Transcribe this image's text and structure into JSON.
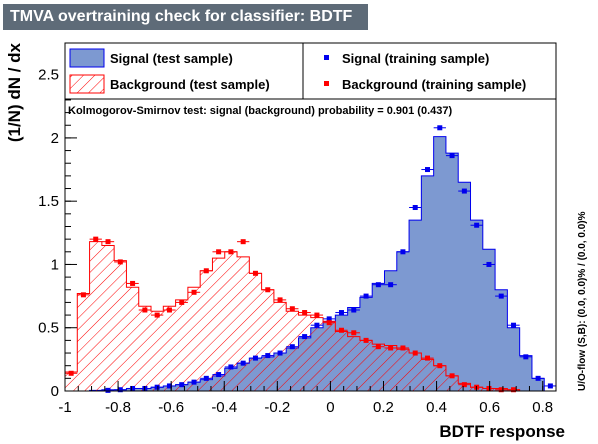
{
  "chart_data": {
    "type": "histogram",
    "title": "TMVA overtraining check for classifier: BDTF",
    "xlabel": "BDTF response",
    "ylabel": "(1/N) dN / dx",
    "side_label": "U/O-flow (S,B): (0.0, 0.0)% / (0.0, 0.0)%",
    "ks_text": "Kolmogorov-Smirnov test: signal (background) probability = 0.901 (0.437)",
    "xlim": [
      -1.0,
      0.85
    ],
    "ylim": [
      0,
      2.75
    ],
    "x_ticks": [
      "-1",
      "-0.8",
      "-0.6",
      "-0.4",
      "-0.2",
      "0",
      "0.2",
      "0.4",
      "0.6",
      "0.8"
    ],
    "x_tick_values": [
      -1,
      -0.8,
      -0.6,
      -0.4,
      -0.2,
      0,
      0.2,
      0.4,
      0.6,
      0.8
    ],
    "y_ticks": [
      "0",
      "0.5",
      "1",
      "1.5",
      "2",
      "2.5"
    ],
    "y_tick_values": [
      0,
      0.5,
      1,
      1.5,
      2,
      2.5
    ],
    "bin_edges_start": -1.0,
    "bin_width": 0.0463,
    "colors": {
      "signal_fill": "#7d99d1",
      "signal_line": "#0000ee",
      "background_line": "#ff0000"
    },
    "legend": {
      "signal_test": "Signal (test sample)",
      "background_test": "Background (test sample)",
      "signal_training": "Signal (training sample)",
      "background_training": "Background (training sample)"
    },
    "series": [
      {
        "name": "Signal (test sample)",
        "style": "filled-histogram",
        "values": [
          0.0,
          0.0,
          0.005,
          0.01,
          0.01,
          0.02,
          0.02,
          0.03,
          0.04,
          0.05,
          0.07,
          0.09,
          0.12,
          0.18,
          0.22,
          0.26,
          0.27,
          0.3,
          0.34,
          0.42,
          0.5,
          0.55,
          0.6,
          0.66,
          0.74,
          0.85,
          0.95,
          1.1,
          1.35,
          1.7,
          2.01,
          1.88,
          1.65,
          1.35,
          1.12,
          0.8,
          0.5,
          0.28,
          0.1,
          0.0
        ]
      },
      {
        "name": "Background (test sample)",
        "style": "hatched-histogram",
        "values": [
          0.15,
          0.77,
          1.18,
          1.15,
          1.03,
          0.82,
          0.67,
          0.63,
          0.67,
          0.72,
          0.82,
          0.95,
          1.05,
          1.1,
          1.06,
          0.93,
          0.8,
          0.7,
          0.63,
          0.6,
          0.58,
          0.55,
          0.47,
          0.43,
          0.4,
          0.37,
          0.36,
          0.33,
          0.3,
          0.25,
          0.2,
          0.12,
          0.06,
          0.03,
          0.02,
          0.02,
          0.01,
          0.0,
          0.0,
          0.0
        ]
      },
      {
        "name": "Signal (training sample)",
        "style": "points",
        "values": [
          0.0,
          0.0,
          0.0,
          0.005,
          0.01,
          0.02,
          0.02,
          0.03,
          0.04,
          0.05,
          0.07,
          0.1,
          0.13,
          0.19,
          0.22,
          0.26,
          0.28,
          0.3,
          0.35,
          0.43,
          0.52,
          0.57,
          0.62,
          0.64,
          0.75,
          0.84,
          0.84,
          1.1,
          1.45,
          1.75,
          2.08,
          1.86,
          1.58,
          1.31,
          1.0,
          0.75,
          0.52,
          0.27,
          0.1,
          0.04
        ]
      },
      {
        "name": "Background (training sample)",
        "style": "points",
        "values": [
          0.14,
          0.76,
          1.2,
          1.18,
          1.02,
          0.85,
          0.64,
          0.6,
          0.64,
          0.7,
          0.78,
          0.95,
          1.1,
          1.1,
          1.18,
          0.93,
          0.8,
          0.72,
          0.65,
          0.62,
          0.6,
          0.54,
          0.48,
          0.46,
          0.4,
          0.35,
          0.34,
          0.34,
          0.3,
          0.26,
          0.2,
          0.12,
          0.05,
          0.03,
          0.02,
          0.01,
          0.01,
          0.0,
          0.0,
          0.0
        ]
      }
    ]
  }
}
